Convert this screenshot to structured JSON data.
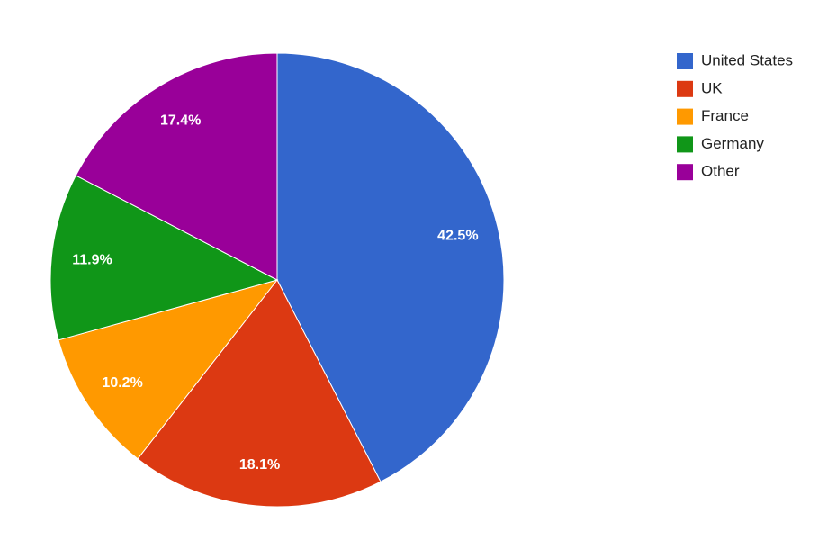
{
  "chart_data": {
    "type": "pie",
    "categories": [
      "United States",
      "UK",
      "France",
      "Germany",
      "Other"
    ],
    "values": [
      42.5,
      18.1,
      10.2,
      11.9,
      17.4
    ],
    "value_labels": [
      "42.5%",
      "18.1%",
      "10.2%",
      "11.9%",
      "17.4%"
    ],
    "colors": [
      "#3366cc",
      "#dc3912",
      "#ff9900",
      "#109618",
      "#990099"
    ],
    "legend": "right"
  }
}
